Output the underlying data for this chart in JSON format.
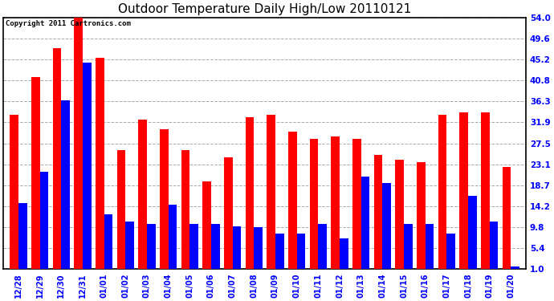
{
  "title": "Outdoor Temperature Daily High/Low 20110121",
  "copyright": "Copyright 2011 Cartronics.com",
  "dates": [
    "12/28",
    "12/29",
    "12/30",
    "12/31",
    "01/01",
    "01/02",
    "01/03",
    "01/04",
    "01/05",
    "01/06",
    "01/07",
    "01/08",
    "01/09",
    "01/10",
    "01/11",
    "01/12",
    "01/13",
    "01/14",
    "01/15",
    "01/16",
    "01/17",
    "01/18",
    "01/19",
    "01/20"
  ],
  "highs": [
    33.5,
    41.5,
    47.5,
    54.5,
    45.5,
    26.0,
    32.5,
    30.5,
    26.0,
    19.5,
    24.5,
    33.0,
    33.5,
    30.0,
    28.5,
    29.0,
    28.5,
    25.0,
    24.0,
    23.5,
    33.5,
    34.0,
    34.0,
    22.5
  ],
  "lows": [
    15.0,
    21.5,
    36.5,
    44.5,
    12.5,
    11.0,
    10.5,
    14.5,
    10.5,
    10.5,
    10.0,
    9.8,
    8.5,
    8.5,
    10.5,
    7.5,
    20.5,
    19.2,
    10.5,
    10.5,
    8.5,
    16.5,
    11.0,
    1.5
  ],
  "high_color": "#ff0000",
  "low_color": "#0000ff",
  "bg_color": "#ffffff",
  "grid_color": "#aaaaaa",
  "title_fontsize": 11,
  "ylim_min": 1.0,
  "ylim_max": 54.0,
  "yticks": [
    1.0,
    5.4,
    9.8,
    14.2,
    18.7,
    23.1,
    27.5,
    31.9,
    36.3,
    40.8,
    45.2,
    49.6,
    54.0
  ],
  "bar_width": 0.4,
  "border_color": "#000000"
}
